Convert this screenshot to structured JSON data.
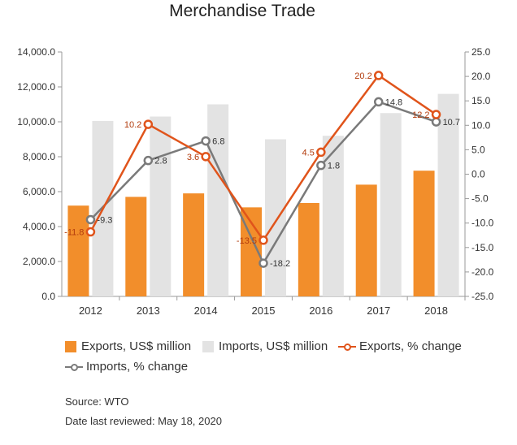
{
  "chart_data": {
    "type": "bar",
    "title": "Merchandise Trade",
    "categories": [
      "2012",
      "2013",
      "2014",
      "2015",
      "2016",
      "2017",
      "2018"
    ],
    "left_axis": {
      "ylim": [
        0,
        14000
      ],
      "ticks": [
        "0.0",
        "2,000.0",
        "4,000.0",
        "6,000.0",
        "8,000.0",
        "10,000.0",
        "12,000.0",
        "14,000.0"
      ]
    },
    "right_axis": {
      "ylim": [
        -25,
        25
      ],
      "ticks": [
        "-25.0",
        "-20.0",
        "-15.0",
        "-10.0",
        "-5.0",
        "0.0",
        "5.0",
        "10.0",
        "15.0",
        "20.0",
        "25.0"
      ]
    },
    "series": [
      {
        "name": "Exports, US$ million",
        "kind": "bar",
        "axis": "left",
        "color": "#f28e2b",
        "values": [
          5200,
          5700,
          5900,
          5100,
          5350,
          6400,
          7200
        ]
      },
      {
        "name": "Imports, US$ million",
        "kind": "bar",
        "axis": "left",
        "color": "#e3e3e3",
        "values": [
          10050,
          10300,
          11000,
          9000,
          9200,
          10500,
          11600
        ]
      },
      {
        "name": "Exports, % change",
        "kind": "line",
        "axis": "right",
        "color": "#e0541b",
        "values": [
          -11.8,
          10.2,
          3.6,
          -13.5,
          4.5,
          20.2,
          12.2
        ],
        "labels": [
          "-11.8",
          "10.2",
          "3.6",
          "-13.5",
          "4.5",
          "20.2",
          "12.2"
        ]
      },
      {
        "name": "Imports, % change",
        "kind": "line",
        "axis": "right",
        "color": "#7a7a7a",
        "values": [
          -9.3,
          2.8,
          6.8,
          -18.2,
          1.8,
          14.8,
          10.7
        ],
        "labels": [
          "-9.3",
          "2.8",
          "6.8",
          "-18.2",
          "1.8",
          "14.8",
          "10.7"
        ]
      }
    ],
    "grid": false,
    "legend": "bottom"
  },
  "footer": {
    "source": "Source: WTO",
    "reviewed": "Date last reviewed: May 18, 2020"
  }
}
